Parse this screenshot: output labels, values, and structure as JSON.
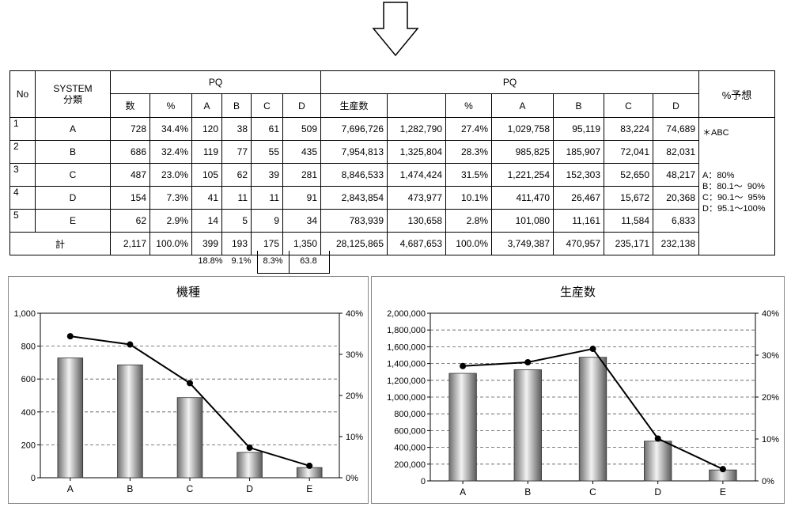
{
  "table": {
    "head": {
      "no": "No",
      "system": "SYSTEM\n分類",
      "group1": "PQ",
      "group2": "PQ",
      "forecast": "%予想",
      "sub1": [
        "数",
        "%",
        "A",
        "B",
        "C",
        "D"
      ],
      "sub2": [
        "生産数",
        "",
        "%",
        "A",
        "B",
        "C",
        "D"
      ]
    },
    "rows": [
      {
        "no": "1",
        "sys": "A",
        "cnt": "728",
        "pct": "34.4%",
        "a": "120",
        "b": "38",
        "c": "61",
        "d": "509",
        "prod": "7,696,726",
        "blank": "1,282,790",
        "ppct": "27.4%",
        "pa": "1,029,758",
        "pb": "95,119",
        "pc": "83,224",
        "pd": "74,689"
      },
      {
        "no": "2",
        "sys": "B",
        "cnt": "686",
        "pct": "32.4%",
        "a": "119",
        "b": "77",
        "c": "55",
        "d": "435",
        "prod": "7,954,813",
        "blank": "1,325,804",
        "ppct": "28.3%",
        "pa": "985,825",
        "pb": "185,907",
        "pc": "72,041",
        "pd": "82,031"
      },
      {
        "no": "3",
        "sys": "C",
        "cnt": "487",
        "pct": "23.0%",
        "a": "105",
        "b": "62",
        "c": "39",
        "d": "281",
        "prod": "8,846,533",
        "blank": "1,474,424",
        "ppct": "31.5%",
        "pa": "1,221,254",
        "pb": "152,303",
        "pc": "52,650",
        "pd": "48,217"
      },
      {
        "no": "4",
        "sys": "D",
        "cnt": "154",
        "pct": "7.3%",
        "a": "41",
        "b": "11",
        "c": "11",
        "d": "91",
        "prod": "2,843,854",
        "blank": "473,977",
        "ppct": "10.1%",
        "pa": "411,470",
        "pb": "26,467",
        "pc": "15,672",
        "pd": "20,368"
      },
      {
        "no": "5",
        "sys": "E",
        "cnt": "62",
        "pct": "2.9%",
        "a": "14",
        "b": "5",
        "c": "9",
        "d": "34",
        "prod": "783,939",
        "blank": "130,658",
        "ppct": "2.8%",
        "pa": "101,080",
        "pb": "11,161",
        "pc": "11,584",
        "pd": "6,833"
      }
    ],
    "total": {
      "label": "計",
      "cnt": "2,117",
      "pct": "100.0%",
      "a": "399",
      "b": "193",
      "c": "175",
      "d": "1,350",
      "prod": "28,125,865",
      "blank": "4,687,653",
      "ppct": "100.0%",
      "pa": "3,749,387",
      "pb": "470,957",
      "pc": "235,171",
      "pd": "232,138"
    },
    "abcd_pct": [
      "18.8%",
      "9.1%",
      "8.3%",
      "63.8"
    ],
    "forecast_notes": {
      "header": "＊ABC",
      "lines": [
        "A：80%",
        "B：80.1～  90%",
        "C：90.1～  95%",
        "D：95.1～100%"
      ]
    }
  },
  "chart_data": [
    {
      "type": "bar",
      "title": "機種",
      "categories": [
        "A",
        "B",
        "C",
        "D",
        "E"
      ],
      "values": [
        728,
        686,
        487,
        154,
        62
      ],
      "ylim": [
        0,
        1000
      ],
      "yticks": [
        "0",
        "200",
        "400",
        "600",
        "800",
        "1,000"
      ],
      "y2": {
        "type": "line",
        "values": [
          34.4,
          32.4,
          23.0,
          7.3,
          2.9
        ],
        "ylim": [
          0,
          40
        ],
        "yticks": [
          "0%",
          "10%",
          "20%",
          "30%",
          "40%"
        ]
      },
      "grid": true
    },
    {
      "type": "bar",
      "title": "生産数",
      "categories": [
        "A",
        "B",
        "C",
        "D",
        "E"
      ],
      "values": [
        1282790,
        1325804,
        1474424,
        473977,
        130658
      ],
      "ylim": [
        0,
        2000000
      ],
      "yticks": [
        "0",
        "200,000",
        "400,000",
        "600,000",
        "800,000",
        "1,000,000",
        "1,200,000",
        "1,400,000",
        "1,600,000",
        "1,800,000",
        "2,000,000"
      ],
      "y2": {
        "type": "line",
        "values": [
          27.4,
          28.3,
          31.5,
          10.1,
          2.8
        ],
        "ylim": [
          0,
          40
        ],
        "yticks": [
          "0%",
          "10%",
          "20%",
          "30%",
          "40%"
        ]
      },
      "grid": true
    }
  ]
}
